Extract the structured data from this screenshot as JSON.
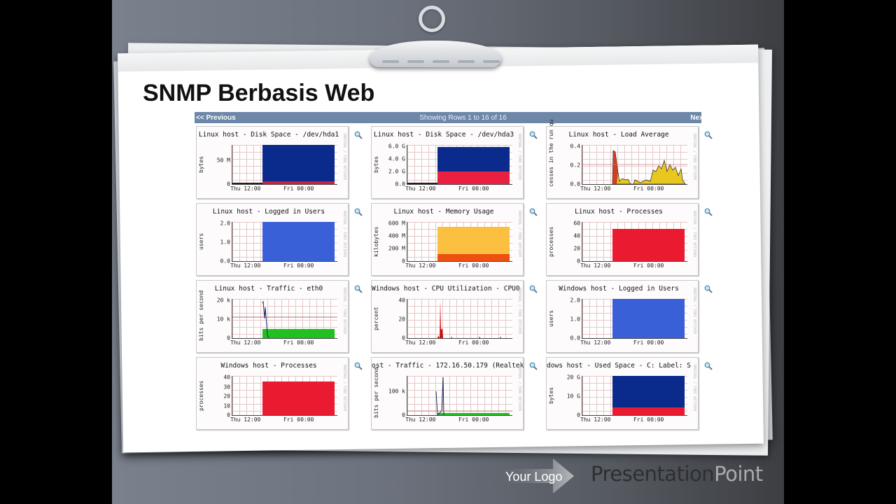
{
  "slide": {
    "title": "SNMP Berbasis Web",
    "logo_text": "Your Logo",
    "brand_part1": "Presentation",
    "brand_part2": "Point"
  },
  "browser": {
    "prev_label": "<< Previous",
    "status": "Showing Rows 1 to 16 of 16",
    "next_label": "Next"
  },
  "graphs": [
    {
      "title": "Linux host - Disk Space - /dev/hda1",
      "ylabel": "bytes",
      "yticks": [
        "50 M",
        "0"
      ],
      "xticks": [
        "Thu 12:00",
        "Fri 00:00"
      ],
      "type": "stack",
      "colors": [
        "#cc2040",
        "#0a2a8c"
      ],
      "heights": [
        8,
        92
      ]
    },
    {
      "title": "Linux host - Disk Space - /dev/hda3",
      "ylabel": "bytes",
      "yticks": [
        "6.0 G",
        "4.0 G",
        "2.0 G",
        "0.0"
      ],
      "xticks": [
        "Thu 12:00",
        "Fri 00:00"
      ],
      "type": "stack",
      "colors": [
        "#ea2040",
        "#0a2a8c"
      ],
      "heights": [
        33,
        62
      ]
    },
    {
      "title": "Linux host - Load Average",
      "ylabel": "cesses in the run qu",
      "yticks": [
        "0.4",
        "0.2",
        "0.0"
      ],
      "xticks": [
        "Thu 12:00",
        "Fri 00:00"
      ],
      "type": "load",
      "colors": [
        "#e8c820",
        "#c82020"
      ]
    },
    {
      "title": "Linux host - Logged in Users",
      "ylabel": "users",
      "yticks": [
        "2.0",
        "1.0",
        "0.0"
      ],
      "xticks": [
        "Thu 12:00",
        "Fri 00:00"
      ],
      "type": "stack",
      "colors": [
        "#3a60d8"
      ],
      "heights": [
        100
      ]
    },
    {
      "title": "Linux host - Memory Usage",
      "ylabel": "kilobytes",
      "yticks": [
        "600 M",
        "400 M",
        "200 M",
        "0"
      ],
      "xticks": [
        "Thu 12:00",
        "Fri 00:00"
      ],
      "type": "stack",
      "colors": [
        "#ee5010",
        "#fbc040"
      ],
      "heights": [
        18,
        70
      ]
    },
    {
      "title": "Linux host - Processes",
      "ylabel": "processes",
      "yticks": [
        "60",
        "40",
        "20",
        "0"
      ],
      "xticks": [
        "Thu 12:00",
        "Fri 00:00"
      ],
      "type": "stack",
      "colors": [
        "#ea1a30"
      ],
      "heights": [
        83
      ]
    },
    {
      "title": "Linux host - Traffic - eth0",
      "ylabel": "bits per second",
      "yticks": [
        "20 k",
        "10 k",
        "0"
      ],
      "xticks": [
        "Thu 12:00",
        "Fri 00:00"
      ],
      "type": "traffic",
      "colors": [
        "#20c020",
        "#1a2a60"
      ]
    },
    {
      "title": "Windows host - CPU Utilization - CPU0",
      "ylabel": "percent",
      "yticks": [
        "40",
        "20",
        "0"
      ],
      "xticks": [
        "Thu 12:00",
        "Fri 00:00"
      ],
      "type": "cpu",
      "colors": [
        "#cc1010"
      ]
    },
    {
      "title": "Windows host - Logged in Users",
      "ylabel": "users",
      "yticks": [
        "2.0",
        "1.0",
        "0.0"
      ],
      "xticks": [
        "Thu 12:00",
        "Fri 00:00"
      ],
      "type": "stack",
      "colors": [
        "#3a60d8"
      ],
      "heights": [
        100
      ]
    },
    {
      "title": "Windows host - Processes",
      "ylabel": "processes",
      "yticks": [
        "40",
        "30",
        "20",
        "10",
        "0"
      ],
      "xticks": [
        "Thu 12:00",
        "Fri 00:00"
      ],
      "type": "stack",
      "colors": [
        "#ea1a30"
      ],
      "heights": [
        85
      ]
    },
    {
      "title": "ost - Traffic - 172.16.50.179 (Realtek",
      "ylabel": "bits per second",
      "yticks": [
        "100 k",
        "0"
      ],
      "xticks": [
        "Thu 12:00",
        "Fri 00:00"
      ],
      "type": "traffic2",
      "colors": [
        "#20c020",
        "#1a2a60"
      ]
    },
    {
      "title": "dows host - Used Space - C: Label:  S",
      "ylabel": "bytes",
      "yticks": [
        "20 G",
        "10 G",
        "0"
      ],
      "xticks": [
        "Thu 12:00",
        "Fri 00:00"
      ],
      "type": "stack",
      "colors": [
        "#ea1a30",
        "#0a2a8c"
      ],
      "heights": [
        20,
        80
      ]
    }
  ],
  "side_text": "RRDTOOL / TOBI OETIKER"
}
